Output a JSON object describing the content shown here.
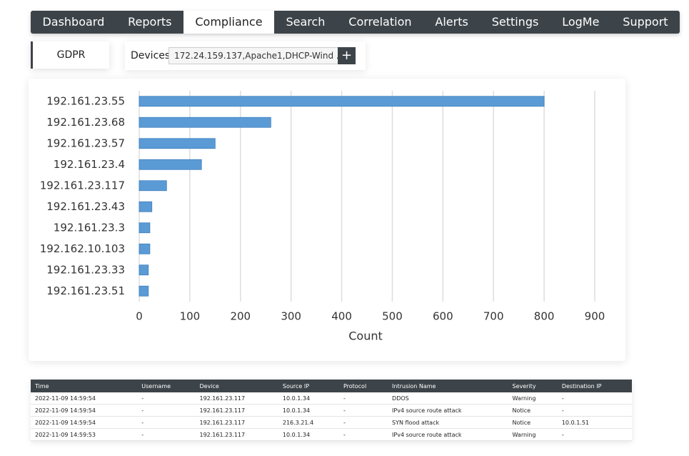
{
  "nav": [
    "Dashboard",
    "Reports",
    "Compliance",
    "Search",
    "Correlation",
    "Alerts",
    "Settings",
    "LogMe",
    "Support"
  ],
  "report": "GDPR",
  "devices": {
    "label": "Devices",
    "value": "172.24.159.137,Apache1,DHCP-Wind ...",
    "button": "+"
  },
  "chart_data": {
    "type": "bar",
    "orientation": "horizontal",
    "categories": [
      "192.161.23.55",
      "192.161.23.68",
      "192.161.23.57",
      "192.161.23.4",
      "192.161.23.117",
      "192.161.23.43",
      "192.161.23.3",
      "192.162.10.103",
      "192.161.23.33",
      "192.161.23.51"
    ],
    "values": [
      800,
      260,
      150,
      123,
      54,
      25,
      21,
      21,
      18,
      18
    ],
    "color": "#5b9bd5",
    "xlabel": "Count",
    "xlim": [
      0,
      900
    ],
    "xticks": [
      0,
      100,
      200,
      300,
      400,
      500,
      600,
      700,
      800,
      900
    ],
    "grid": true
  },
  "table": {
    "columns": [
      "Time",
      "Username",
      "Device",
      "Source IP",
      "Protocol",
      "Intrusion Name",
      "Severity",
      "Destination IP"
    ],
    "rows": [
      [
        "2022-11-09 14:59:54",
        "-",
        "192.161.23.117",
        "10.0.1.34",
        "-",
        "DDOS",
        "Warning",
        "-"
      ],
      [
        "2022-11-09 14:59:54",
        "-",
        "192.161.23.117",
        "10.0.1.34",
        "-",
        "IPv4 source route attack",
        "Notice",
        "-"
      ],
      [
        "2022-11-09 14:59:54",
        "-",
        "192.161.23.117",
        "216.3.21.4",
        "-",
        "SYN flood attack",
        "Notice",
        "10.0.1.51"
      ],
      [
        "2022-11-09 14:59:53",
        "-",
        "192.161.23.117",
        "10.0.1.34",
        "-",
        "IPv4 source route attack",
        "Warning",
        "-"
      ]
    ]
  }
}
